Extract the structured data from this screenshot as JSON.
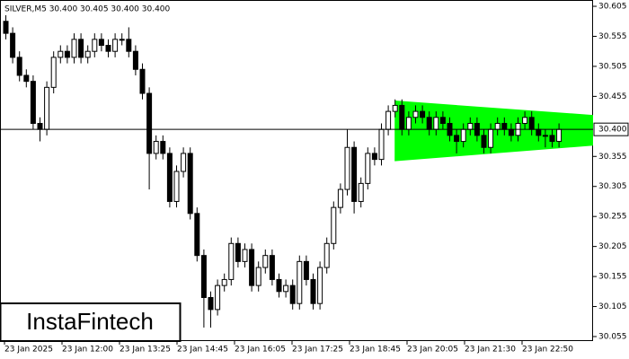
{
  "chart_data": {
    "type": "candlestick",
    "title": "SILVER,M5  30.400 30.405 30.400 30.400",
    "logo": "InstaFintech",
    "current_price": {
      "value": 30.4,
      "label": "30.400"
    },
    "ylim": [
      30.0475,
      30.6155
    ],
    "yticks": [
      30.605,
      30.555,
      30.505,
      30.455,
      30.355,
      30.305,
      30.255,
      30.205,
      30.155,
      30.105,
      30.055
    ],
    "x_labels": [
      "23 Jan 2025",
      "23 Jan 12:00",
      "23 Jan 13:25",
      "23 Jan 14:45",
      "23 Jan 16:05",
      "23 Jan 17:25",
      "23 Jan 18:45",
      "23 Jan 20:05",
      "23 Jan 21:30",
      "23 Jan 22:50"
    ],
    "up_color": "#ffffff",
    "down_color": "#000000",
    "pattern": {
      "color": "#00ff00",
      "upper": [
        30.448,
        30.424
      ],
      "lower": [
        30.347,
        30.373
      ]
    },
    "open": [
      30.58,
      30.56,
      30.52,
      30.49,
      30.48,
      30.41,
      30.4,
      30.47,
      30.52,
      30.53,
      30.52,
      30.55,
      30.52,
      30.53,
      30.55,
      30.54,
      30.53,
      30.55,
      30.55,
      30.53,
      30.5,
      30.46,
      30.36,
      30.38,
      30.36,
      30.28,
      30.33,
      30.36,
      30.26,
      30.19,
      30.12,
      30.1,
      30.14,
      30.15,
      30.21,
      30.18,
      30.2,
      30.14,
      30.17,
      30.19,
      30.15,
      30.13,
      30.14,
      30.11,
      30.18,
      30.15,
      30.11,
      30.17,
      30.21,
      30.27,
      30.3,
      30.37,
      30.28,
      30.31,
      30.36,
      30.35,
      30.4,
      30.43,
      30.44,
      30.4,
      30.42,
      30.43,
      30.42,
      30.4,
      30.42,
      30.41,
      30.39,
      30.38,
      30.4,
      30.41,
      30.39,
      30.37,
      30.4,
      30.41,
      30.4,
      30.39,
      30.41,
      30.42,
      30.4,
      30.39,
      30.39,
      30.38
    ],
    "high": [
      30.59,
      30.57,
      30.53,
      30.5,
      30.49,
      30.42,
      30.48,
      30.53,
      30.54,
      30.54,
      30.56,
      30.56,
      30.54,
      30.56,
      30.56,
      30.55,
      30.56,
      30.56,
      30.57,
      30.54,
      30.51,
      30.47,
      30.39,
      30.39,
      30.37,
      30.34,
      30.37,
      30.37,
      30.27,
      30.2,
      30.13,
      30.15,
      30.16,
      30.22,
      30.22,
      30.21,
      30.21,
      30.18,
      30.2,
      30.2,
      30.16,
      30.15,
      30.15,
      30.19,
      30.19,
      30.16,
      30.18,
      30.22,
      30.28,
      30.31,
      30.4,
      30.38,
      30.32,
      30.37,
      30.37,
      30.41,
      30.44,
      30.45,
      30.45,
      30.43,
      30.44,
      30.44,
      30.43,
      30.43,
      30.43,
      30.42,
      30.4,
      30.41,
      30.42,
      30.42,
      30.4,
      30.41,
      30.42,
      30.42,
      30.41,
      30.42,
      30.43,
      30.43,
      30.41,
      30.4,
      30.4,
      30.41
    ],
    "low": [
      30.55,
      30.51,
      30.48,
      30.47,
      30.4,
      30.38,
      30.39,
      30.46,
      30.51,
      30.51,
      30.51,
      30.51,
      30.51,
      30.52,
      30.53,
      30.52,
      30.52,
      30.54,
      30.52,
      30.49,
      30.45,
      30.3,
      30.35,
      30.35,
      30.27,
      30.27,
      30.32,
      30.25,
      30.18,
      30.07,
      30.07,
      30.09,
      30.13,
      30.14,
      30.17,
      30.17,
      30.13,
      30.13,
      30.16,
      30.14,
      30.12,
      30.12,
      30.1,
      30.1,
      30.14,
      30.1,
      30.1,
      30.16,
      30.2,
      30.26,
      30.29,
      30.26,
      30.27,
      30.3,
      30.34,
      30.34,
      30.39,
      30.42,
      30.39,
      30.39,
      30.41,
      30.41,
      30.39,
      30.39,
      30.4,
      30.38,
      30.36,
      30.37,
      30.39,
      30.38,
      30.36,
      30.36,
      30.39,
      30.39,
      30.38,
      30.38,
      30.4,
      30.39,
      30.38,
      30.37,
      30.37,
      30.37
    ],
    "close": [
      30.56,
      30.52,
      30.49,
      30.48,
      30.41,
      30.4,
      30.47,
      30.52,
      30.53,
      30.52,
      30.55,
      30.52,
      30.53,
      30.55,
      30.54,
      30.53,
      30.55,
      30.55,
      30.53,
      30.5,
      30.46,
      30.36,
      30.38,
      30.36,
      30.28,
      30.33,
      30.36,
      30.26,
      30.19,
      30.12,
      30.1,
      30.14,
      30.15,
      30.21,
      30.18,
      30.2,
      30.14,
      30.17,
      30.19,
      30.15,
      30.13,
      30.14,
      30.11,
      30.18,
      30.15,
      30.11,
      30.17,
      30.21,
      30.27,
      30.3,
      30.37,
      30.28,
      30.31,
      30.36,
      30.35,
      30.4,
      30.43,
      30.44,
      30.4,
      30.42,
      30.43,
      30.42,
      30.4,
      30.42,
      30.41,
      30.39,
      30.38,
      30.4,
      30.41,
      30.39,
      30.37,
      30.4,
      30.41,
      30.4,
      30.39,
      30.41,
      30.42,
      30.4,
      30.39,
      30.39,
      30.38,
      30.4
    ]
  }
}
